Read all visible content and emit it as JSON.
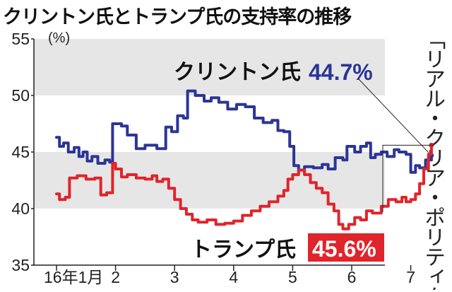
{
  "title": "クリントン氏とトランプ氏の支持率の推移",
  "source_note": "「リアル・クリア・ポリティクス」による各種世論調査の平均値",
  "chart_data": {
    "type": "line",
    "title": "クリントン氏とトランプ氏の支持率の推移",
    "unit_label": "(%)",
    "ylim": [
      35,
      55
    ],
    "yticks": [
      35,
      40,
      45,
      50,
      55
    ],
    "xlim": [
      0,
      6.8
    ],
    "xticks": [
      {
        "pos": 0,
        "label": "16年1月"
      },
      {
        "pos": 1,
        "label": "2"
      },
      {
        "pos": 2,
        "label": "3"
      },
      {
        "pos": 3,
        "label": "4"
      },
      {
        "pos": 4,
        "label": "5"
      },
      {
        "pos": 5,
        "label": "6"
      },
      {
        "pos": 6,
        "label": "7"
      }
    ],
    "grid": "horizontal bands",
    "series": [
      {
        "name": "クリントン氏",
        "color": "#2b3596",
        "final_label": "44.7%",
        "points": [
          [
            0,
            46.3
          ],
          [
            0.05,
            45.5
          ],
          [
            0.12,
            45.8
          ],
          [
            0.2,
            45.0
          ],
          [
            0.3,
            45.4
          ],
          [
            0.38,
            44.6
          ],
          [
            0.45,
            45.0
          ],
          [
            0.52,
            44.2
          ],
          [
            0.6,
            44.6
          ],
          [
            0.7,
            44.0
          ],
          [
            0.82,
            44.3
          ],
          [
            0.9,
            44.1
          ],
          [
            0.95,
            47.5
          ],
          [
            1.1,
            47.3
          ],
          [
            1.2,
            46.5
          ],
          [
            1.35,
            45.3
          ],
          [
            1.5,
            45.6
          ],
          [
            1.7,
            45.3
          ],
          [
            1.85,
            47.2
          ],
          [
            1.95,
            46.8
          ],
          [
            2.05,
            48.2
          ],
          [
            2.15,
            48.0
          ],
          [
            2.22,
            50.4
          ],
          [
            2.35,
            50.0
          ],
          [
            2.5,
            49.5
          ],
          [
            2.62,
            49.8
          ],
          [
            2.75,
            49.4
          ],
          [
            2.9,
            48.8
          ],
          [
            3.05,
            49.2
          ],
          [
            3.2,
            49.0
          ],
          [
            3.35,
            48.0
          ],
          [
            3.5,
            47.6
          ],
          [
            3.65,
            47.8
          ],
          [
            3.75,
            46.9
          ],
          [
            3.85,
            46.8
          ],
          [
            3.95,
            45.5
          ],
          [
            4.02,
            43.8
          ],
          [
            4.1,
            43.4
          ],
          [
            4.2,
            43.7
          ],
          [
            4.35,
            43.6
          ],
          [
            4.5,
            43.9
          ],
          [
            4.6,
            43.5
          ],
          [
            4.72,
            44.5
          ],
          [
            4.85,
            44.3
          ],
          [
            4.92,
            45.5
          ],
          [
            5.05,
            45.0
          ],
          [
            5.15,
            45.5
          ],
          [
            5.25,
            45.8
          ],
          [
            5.32,
            44.5
          ],
          [
            5.4,
            44.8
          ],
          [
            5.5,
            45.0
          ],
          [
            5.6,
            44.6
          ],
          [
            5.72,
            45.2
          ],
          [
            5.8,
            45.0
          ],
          [
            5.92,
            44.8
          ],
          [
            6.0,
            43.2
          ],
          [
            6.08,
            43.8
          ],
          [
            6.15,
            43.6
          ],
          [
            6.25,
            44.3
          ],
          [
            6.35,
            44.7
          ]
        ]
      },
      {
        "name": "トランプ氏",
        "color": "#e0242b",
        "final_label": "45.6%",
        "points": [
          [
            0,
            41.3
          ],
          [
            0.05,
            40.8
          ],
          [
            0.15,
            41.0
          ],
          [
            0.22,
            42.7
          ],
          [
            0.35,
            42.9
          ],
          [
            0.5,
            42.6
          ],
          [
            0.65,
            42.7
          ],
          [
            0.75,
            41.2
          ],
          [
            0.85,
            41.4
          ],
          [
            0.95,
            44.0
          ],
          [
            1.0,
            43.5
          ],
          [
            1.1,
            42.8
          ],
          [
            1.2,
            43.0
          ],
          [
            1.35,
            42.7
          ],
          [
            1.5,
            42.6
          ],
          [
            1.62,
            42.9
          ],
          [
            1.7,
            42.4
          ],
          [
            1.8,
            42.6
          ],
          [
            1.9,
            41.8
          ],
          [
            2.0,
            40.8
          ],
          [
            2.1,
            40.0
          ],
          [
            2.2,
            39.5
          ],
          [
            2.3,
            39.0
          ],
          [
            2.4,
            38.8
          ],
          [
            2.55,
            39.0
          ],
          [
            2.7,
            38.6
          ],
          [
            2.85,
            38.7
          ],
          [
            3.0,
            38.9
          ],
          [
            3.15,
            39.4
          ],
          [
            3.3,
            39.8
          ],
          [
            3.45,
            40.2
          ],
          [
            3.6,
            40.6
          ],
          [
            3.75,
            41.1
          ],
          [
            3.85,
            41.6
          ],
          [
            3.92,
            42.6
          ],
          [
            4.0,
            43.0
          ],
          [
            4.1,
            43.4
          ],
          [
            4.2,
            43.0
          ],
          [
            4.3,
            42.3
          ],
          [
            4.4,
            41.8
          ],
          [
            4.5,
            41.4
          ],
          [
            4.6,
            40.4
          ],
          [
            4.7,
            39.8
          ],
          [
            4.78,
            38.6
          ],
          [
            4.85,
            38.2
          ],
          [
            4.95,
            38.6
          ],
          [
            5.05,
            39.2
          ],
          [
            5.15,
            39.0
          ],
          [
            5.25,
            39.8
          ],
          [
            5.35,
            39.6
          ],
          [
            5.5,
            40.2
          ],
          [
            5.62,
            40.8
          ],
          [
            5.75,
            40.6
          ],
          [
            5.85,
            41.0
          ],
          [
            5.92,
            40.6
          ],
          [
            6.0,
            40.8
          ],
          [
            6.08,
            41.3
          ],
          [
            6.15,
            42.2
          ],
          [
            6.22,
            43.5
          ],
          [
            6.3,
            44.8
          ],
          [
            6.35,
            45.6
          ]
        ]
      }
    ]
  }
}
